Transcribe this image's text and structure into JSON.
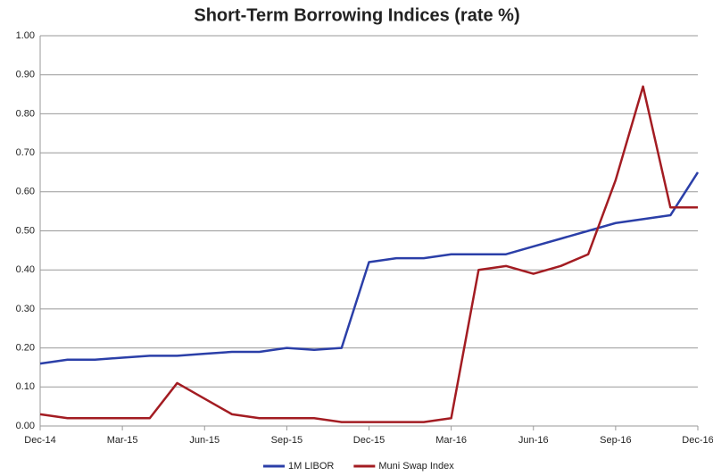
{
  "chart_data": {
    "type": "line",
    "title": "Short-Term Borrowing Indices (rate %)",
    "categories": [
      "Dec-14",
      null,
      null,
      "Mar-15",
      null,
      null,
      "Jun-15",
      null,
      null,
      "Sep-15",
      null,
      null,
      "Dec-15",
      null,
      null,
      "Mar-16",
      null,
      null,
      "Jun-16",
      null,
      null,
      "Sep-16",
      null,
      null,
      "Dec-16"
    ],
    "series": [
      {
        "name": "1M LIBOR",
        "color": "#2b3fa8",
        "values": [
          0.16,
          0.17,
          0.17,
          0.175,
          0.18,
          0.18,
          0.185,
          0.19,
          0.19,
          0.2,
          0.195,
          0.2,
          0.42,
          0.43,
          0.43,
          0.44,
          0.44,
          0.44,
          0.46,
          0.48,
          0.5,
          0.52,
          0.53,
          0.54,
          0.65
        ]
      },
      {
        "name": "Muni Swap Index",
        "color": "#a31c22",
        "values": [
          0.03,
          0.02,
          0.02,
          0.02,
          0.02,
          0.11,
          0.07,
          0.03,
          0.02,
          0.02,
          0.02,
          0.01,
          0.01,
          0.01,
          0.01,
          0.02,
          0.4,
          0.41,
          0.39,
          0.41,
          0.44,
          0.63,
          0.87,
          0.56,
          0.56
        ]
      }
    ],
    "ylim": [
      0,
      1
    ],
    "yticks": [
      {
        "value": 0,
        "label": "0.00"
      },
      {
        "value": 0.1,
        "label": "0.10"
      },
      {
        "value": 0.2,
        "label": "0.20"
      },
      {
        "value": 0.3,
        "label": "0.30"
      },
      {
        "value": 0.4,
        "label": "0.40"
      },
      {
        "value": 0.5,
        "label": "0.50"
      },
      {
        "value": 0.6,
        "label": "0.60"
      },
      {
        "value": 0.7,
        "label": "0.70"
      },
      {
        "value": 0.8,
        "label": "0.80"
      },
      {
        "value": 0.9,
        "label": "0.90"
      },
      {
        "value": 1,
        "label": "1.00"
      }
    ],
    "grid": true,
    "legend": "bottom"
  }
}
